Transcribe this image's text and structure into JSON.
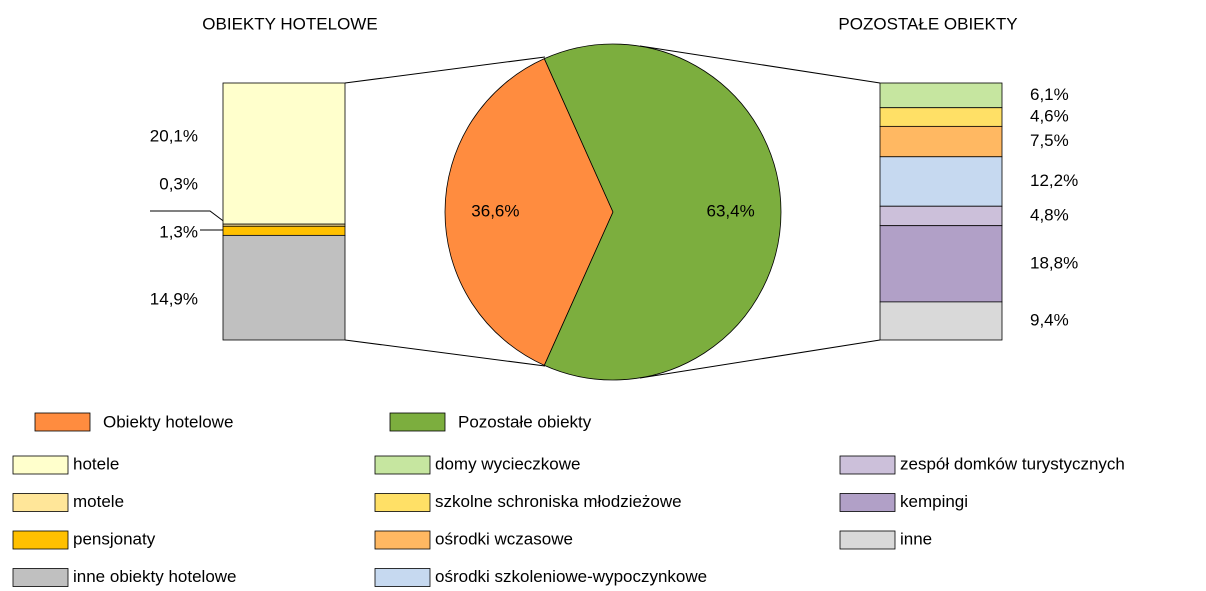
{
  "chart_data": [
    {
      "type": "pie",
      "categories": [
        "Obiekty hotelowe",
        "Pozostałe obiekty"
      ],
      "values": [
        36.6,
        63.4
      ],
      "value_labels": [
        "36,6%",
        "63,4%"
      ],
      "colors": [
        "#ff8c3f",
        "#7cae3e"
      ]
    },
    {
      "type": "bar",
      "stacked": true,
      "title": "OBIEKTY HOTELOWE",
      "series": [
        {
          "name": "hotele",
          "color": "#ffffcc",
          "values": [
            20.1
          ],
          "value_labels": [
            "20,1%"
          ]
        },
        {
          "name": "motele",
          "color": "#ffe699",
          "values": [
            0.3
          ],
          "value_labels": [
            "0,3%"
          ]
        },
        {
          "name": "pensjonaty",
          "color": "#ffc000",
          "values": [
            1.3
          ],
          "value_labels": [
            "1,3%"
          ]
        },
        {
          "name": "inne obiekty hotelowe",
          "color": "#c0c0c0",
          "values": [
            14.9
          ],
          "value_labels": [
            "14,9%"
          ]
        }
      ]
    },
    {
      "type": "bar",
      "stacked": true,
      "title": "POZOSTAŁE OBIEKTY",
      "series": [
        {
          "name": "domy wycieczkowe",
          "color": "#c6e6a0",
          "values": [
            6.1
          ],
          "value_labels": [
            "6,1%"
          ]
        },
        {
          "name": "szkolne schroniska młodzieżowe",
          "color": "#ffe066",
          "values": [
            4.6
          ],
          "value_labels": [
            "4,6%"
          ]
        },
        {
          "name": "ośrodki wczasowe",
          "color": "#ffb862",
          "values": [
            7.5
          ],
          "value_labels": [
            "7,5%"
          ]
        },
        {
          "name": "ośrodki szkoleniowe-wypoczynkowe",
          "color": "#c6d9f0",
          "values": [
            12.2
          ],
          "value_labels": [
            "12,2%"
          ]
        },
        {
          "name": "zespół domków turystycznych",
          "color": "#ccc0da",
          "values": [
            4.8
          ],
          "value_labels": [
            "4,8%"
          ]
        },
        {
          "name": "kempingi",
          "color": "#b1a0c7",
          "values": [
            18.8
          ],
          "value_labels": [
            "18,8%"
          ]
        },
        {
          "name": "inne",
          "color": "#d9d9d9",
          "values": [
            9.4
          ],
          "value_labels": [
            "9,4%"
          ]
        }
      ]
    }
  ]
}
